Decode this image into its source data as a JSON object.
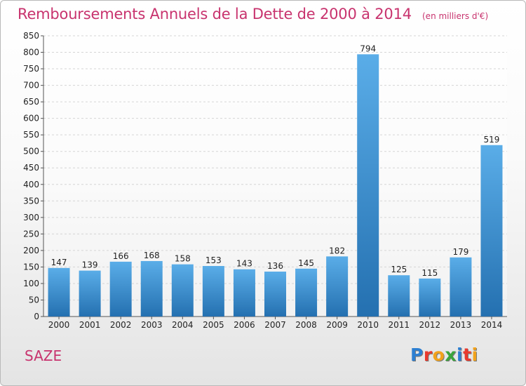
{
  "header": {
    "title": "Remboursements Annuels de la Dette de 2000 à 2014",
    "unit": "(en milliers d'€)"
  },
  "footer": {
    "commune": "SAZE",
    "logo_letters": [
      "P",
      "r",
      "o",
      "x",
      "i",
      "t",
      "i"
    ],
    "logo_colors": [
      "#2d7fd1",
      "#e9392d",
      "#f2a21b",
      "#3aa53b",
      "#2d7fd1",
      "#e9392d",
      "#f2a21b"
    ]
  },
  "colors": {
    "bar_light": "#5aade8",
    "bar_dark": "#2470b0",
    "title": "#c8336e",
    "axis_text": "#222222",
    "grid": "#d5d5d5"
  },
  "chart_data": {
    "type": "bar",
    "title": "Remboursements Annuels de la Dette de 2000 à 2014",
    "xlabel": "",
    "ylabel": "",
    "categories": [
      "2000",
      "2001",
      "2002",
      "2003",
      "2004",
      "2005",
      "2006",
      "2007",
      "2008",
      "2009",
      "2010",
      "2011",
      "2012",
      "2013",
      "2014"
    ],
    "values": [
      147,
      139,
      166,
      168,
      158,
      153,
      143,
      136,
      145,
      182,
      794,
      125,
      115,
      179,
      519
    ],
    "ylim": [
      0,
      850
    ],
    "yticks": [
      0,
      50,
      100,
      150,
      200,
      250,
      300,
      350,
      400,
      450,
      500,
      550,
      600,
      650,
      700,
      750,
      800,
      850
    ],
    "grid": true,
    "data_labels": true
  }
}
